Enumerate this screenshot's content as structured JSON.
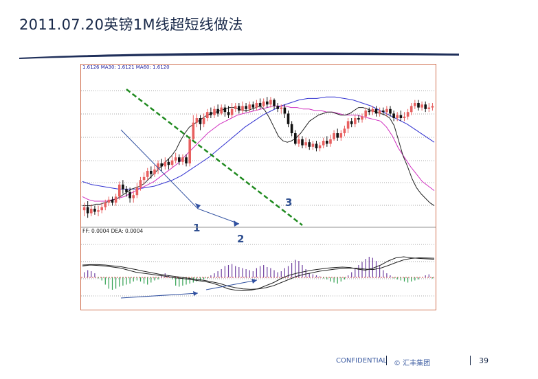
{
  "slide": {
    "title": "2011.07.20英镑1M线超短线做法",
    "confidential": "CONFIDENTIAL",
    "copyright": "© 汇丰集团",
    "page_number": "39"
  },
  "chart_data": {
    "type": "candlestick",
    "price_panel": {
      "header": "1.6126 MA30: 1.6121 MA60: 1.6120",
      "candles": [
        [
          0.09,
          0.11,
          0.05,
          0.14
        ],
        [
          0.11,
          0.07,
          0.04,
          0.15
        ],
        [
          0.07,
          0.1,
          0.05,
          0.13
        ],
        [
          0.1,
          0.08,
          0.06,
          0.12
        ],
        [
          0.08,
          0.09,
          0.05,
          0.12
        ],
        [
          0.09,
          0.11,
          0.07,
          0.14
        ],
        [
          0.11,
          0.14,
          0.09,
          0.16
        ],
        [
          0.14,
          0.16,
          0.12,
          0.18
        ],
        [
          0.16,
          0.14,
          0.12,
          0.18
        ],
        [
          0.14,
          0.18,
          0.12,
          0.2
        ],
        [
          0.18,
          0.26,
          0.16,
          0.28
        ],
        [
          0.26,
          0.23,
          0.2,
          0.29
        ],
        [
          0.23,
          0.21,
          0.18,
          0.25
        ],
        [
          0.21,
          0.17,
          0.14,
          0.24
        ],
        [
          0.17,
          0.19,
          0.14,
          0.22
        ],
        [
          0.19,
          0.24,
          0.17,
          0.27
        ],
        [
          0.24,
          0.29,
          0.22,
          0.31
        ],
        [
          0.29,
          0.31,
          0.26,
          0.34
        ],
        [
          0.31,
          0.35,
          0.29,
          0.37
        ],
        [
          0.35,
          0.33,
          0.3,
          0.38
        ],
        [
          0.33,
          0.36,
          0.31,
          0.39
        ],
        [
          0.36,
          0.4,
          0.33,
          0.42
        ],
        [
          0.4,
          0.38,
          0.35,
          0.43
        ],
        [
          0.38,
          0.41,
          0.36,
          0.44
        ],
        [
          0.41,
          0.39,
          0.36,
          0.43
        ],
        [
          0.39,
          0.42,
          0.37,
          0.45
        ],
        [
          0.42,
          0.44,
          0.4,
          0.47
        ],
        [
          0.44,
          0.41,
          0.39,
          0.46
        ],
        [
          0.41,
          0.44,
          0.39,
          0.46
        ],
        [
          0.44,
          0.4,
          0.38,
          0.46
        ],
        [
          0.4,
          0.56,
          0.38,
          0.58
        ],
        [
          0.56,
          0.67,
          0.54,
          0.72
        ],
        [
          0.67,
          0.7,
          0.64,
          0.73
        ],
        [
          0.7,
          0.66,
          0.62,
          0.72
        ],
        [
          0.66,
          0.7,
          0.64,
          0.73
        ],
        [
          0.7,
          0.74,
          0.68,
          0.76
        ],
        [
          0.74,
          0.72,
          0.7,
          0.77
        ],
        [
          0.72,
          0.76,
          0.7,
          0.78
        ],
        [
          0.76,
          0.73,
          0.71,
          0.79
        ],
        [
          0.73,
          0.77,
          0.72,
          0.79
        ],
        [
          0.77,
          0.74,
          0.71,
          0.79
        ],
        [
          0.74,
          0.72,
          0.7,
          0.78
        ],
        [
          0.72,
          0.76,
          0.7,
          0.8
        ],
        [
          0.76,
          0.78,
          0.74,
          0.8
        ],
        [
          0.78,
          0.75,
          0.73,
          0.8
        ],
        [
          0.75,
          0.78,
          0.73,
          0.81
        ],
        [
          0.78,
          0.76,
          0.74,
          0.8
        ],
        [
          0.76,
          0.79,
          0.74,
          0.81
        ],
        [
          0.79,
          0.77,
          0.75,
          0.81
        ],
        [
          0.77,
          0.8,
          0.75,
          0.82
        ],
        [
          0.8,
          0.78,
          0.76,
          0.83
        ],
        [
          0.78,
          0.81,
          0.77,
          0.83
        ],
        [
          0.81,
          0.79,
          0.77,
          0.84
        ],
        [
          0.79,
          0.82,
          0.77,
          0.84
        ],
        [
          0.82,
          0.78,
          0.76,
          0.83
        ],
        [
          0.78,
          0.76,
          0.74,
          0.8
        ],
        [
          0.76,
          0.77,
          0.73,
          0.79
        ],
        [
          0.77,
          0.73,
          0.7,
          0.79
        ],
        [
          0.73,
          0.66,
          0.64,
          0.75
        ],
        [
          0.66,
          0.6,
          0.58,
          0.68
        ],
        [
          0.6,
          0.53,
          0.52,
          0.62
        ],
        [
          0.53,
          0.56,
          0.51,
          0.59
        ],
        [
          0.56,
          0.52,
          0.5,
          0.58
        ],
        [
          0.52,
          0.54,
          0.5,
          0.57
        ],
        [
          0.54,
          0.51,
          0.49,
          0.56
        ],
        [
          0.51,
          0.53,
          0.49,
          0.55
        ],
        [
          0.53,
          0.5,
          0.48,
          0.55
        ],
        [
          0.5,
          0.52,
          0.48,
          0.54
        ],
        [
          0.52,
          0.55,
          0.5,
          0.57
        ],
        [
          0.55,
          0.53,
          0.51,
          0.58
        ],
        [
          0.53,
          0.56,
          0.51,
          0.59
        ],
        [
          0.56,
          0.6,
          0.55,
          0.62
        ],
        [
          0.6,
          0.57,
          0.55,
          0.63
        ],
        [
          0.57,
          0.6,
          0.55,
          0.62
        ],
        [
          0.6,
          0.63,
          0.58,
          0.65
        ],
        [
          0.63,
          0.68,
          0.6,
          0.7
        ],
        [
          0.68,
          0.66,
          0.64,
          0.7
        ],
        [
          0.66,
          0.7,
          0.64,
          0.72
        ],
        [
          0.7,
          0.69,
          0.67,
          0.72
        ],
        [
          0.69,
          0.71,
          0.67,
          0.73
        ],
        [
          0.71,
          0.75,
          0.69,
          0.77
        ],
        [
          0.75,
          0.74,
          0.72,
          0.77
        ],
        [
          0.74,
          0.76,
          0.72,
          0.78
        ],
        [
          0.76,
          0.73,
          0.71,
          0.78
        ],
        [
          0.73,
          0.75,
          0.71,
          0.77
        ],
        [
          0.75,
          0.74,
          0.72,
          0.77
        ],
        [
          0.74,
          0.76,
          0.71,
          0.78
        ],
        [
          0.76,
          0.73,
          0.71,
          0.78
        ],
        [
          0.73,
          0.7,
          0.68,
          0.75
        ],
        [
          0.7,
          0.72,
          0.68,
          0.74
        ],
        [
          0.72,
          0.7,
          0.68,
          0.75
        ],
        [
          0.7,
          0.71,
          0.68,
          0.74
        ],
        [
          0.71,
          0.74,
          0.69,
          0.76
        ],
        [
          0.74,
          0.78,
          0.72,
          0.8
        ],
        [
          0.78,
          0.8,
          0.76,
          0.82
        ],
        [
          0.8,
          0.77,
          0.75,
          0.82
        ],
        [
          0.77,
          0.79,
          0.75,
          0.81
        ],
        [
          0.79,
          0.76,
          0.74,
          0.81
        ],
        [
          0.76,
          0.77,
          0.74,
          0.8
        ],
        [
          0.77,
          0.78,
          0.75,
          0.8
        ]
      ],
      "ma_short": [
        0.12,
        0.12,
        0.12,
        0.13,
        0.13,
        0.14,
        0.15,
        0.16,
        0.17,
        0.19,
        0.21,
        0.23,
        0.24,
        0.25,
        0.27,
        0.3,
        0.33,
        0.36,
        0.39,
        0.42,
        0.45,
        0.49,
        0.55,
        0.6,
        0.64,
        0.66,
        0.68,
        0.7,
        0.72,
        0.73,
        0.74,
        0.75,
        0.76,
        0.77,
        0.77,
        0.76,
        0.75,
        0.75,
        0.76,
        0.77,
        0.78,
        0.75,
        0.7,
        0.64,
        0.58,
        0.55,
        0.54,
        0.55,
        0.57,
        0.6,
        0.64,
        0.68,
        0.7,
        0.72,
        0.73,
        0.74,
        0.74,
        0.73,
        0.72,
        0.72,
        0.73,
        0.75,
        0.77,
        0.77,
        0.76,
        0.75,
        0.74,
        0.73,
        0.72,
        0.7,
        0.65,
        0.55,
        0.45,
        0.38,
        0.3,
        0.24,
        0.2,
        0.17,
        0.14,
        0.12
      ],
      "ma_mid": [
        0.18,
        0.16,
        0.15,
        0.15,
        0.15,
        0.16,
        0.17,
        0.18,
        0.2,
        0.22,
        0.24,
        0.26,
        0.28,
        0.31,
        0.34,
        0.37,
        0.4,
        0.44,
        0.48,
        0.52,
        0.56,
        0.6,
        0.63,
        0.66,
        0.68,
        0.7,
        0.72,
        0.73,
        0.74,
        0.75,
        0.76,
        0.77,
        0.78,
        0.78,
        0.78,
        0.77,
        0.77,
        0.76,
        0.76,
        0.75,
        0.75,
        0.74,
        0.74,
        0.73,
        0.72,
        0.72,
        0.72,
        0.71,
        0.7,
        0.69,
        0.68,
        0.64,
        0.58,
        0.5,
        0.44,
        0.38,
        0.33,
        0.28,
        0.25,
        0.22
      ],
      "ma_long": [
        0.28,
        0.26,
        0.25,
        0.24,
        0.23,
        0.23,
        0.23,
        0.24,
        0.25,
        0.27,
        0.29,
        0.32,
        0.36,
        0.4,
        0.44,
        0.49,
        0.54,
        0.59,
        0.64,
        0.68,
        0.72,
        0.75,
        0.78,
        0.8,
        0.82,
        0.83,
        0.83,
        0.84,
        0.84,
        0.83,
        0.82,
        0.8,
        0.78,
        0.75,
        0.72,
        0.69,
        0.66,
        0.62,
        0.58,
        0.54
      ],
      "annotations": [
        "1",
        "2",
        "3"
      ]
    },
    "macd_panel": {
      "header": "FF: 0.0004 DEA: 0.0004",
      "histogram": [
        0.25,
        0.35,
        0.3,
        0.2,
        -0.05,
        -0.15,
        -0.35,
        -0.55,
        -0.6,
        -0.55,
        -0.45,
        -0.4,
        -0.35,
        -0.3,
        -0.2,
        -0.15,
        -0.2,
        -0.3,
        -0.35,
        -0.25,
        -0.15,
        -0.1,
        0.1,
        0.2,
        0.1,
        -0.1,
        -0.4,
        -0.45,
        -0.4,
        -0.35,
        -0.3,
        -0.25,
        -0.2,
        -0.15,
        -0.1,
        -0.05,
        0.1,
        0.2,
        0.3,
        0.4,
        0.55,
        0.6,
        0.65,
        0.55,
        0.5,
        0.45,
        0.4,
        0.35,
        0.3,
        0.45,
        0.55,
        0.6,
        0.5,
        0.45,
        0.35,
        0.25,
        0.3,
        0.45,
        0.55,
        0.7,
        0.85,
        0.8,
        0.6,
        0.4,
        0.2,
        0.15,
        0.1,
        0.05,
        -0.05,
        -0.1,
        -0.2,
        -0.25,
        -0.3,
        -0.2,
        -0.1,
        0.1,
        0.25,
        0.45,
        0.6,
        0.75,
        0.9,
        1.0,
        0.95,
        0.8,
        0.55,
        0.35,
        0.2,
        0.1,
        -0.05,
        -0.1,
        -0.15,
        -0.2,
        -0.25,
        -0.2,
        -0.15,
        -0.1,
        0.0,
        0.1,
        0.15,
        -0.05
      ],
      "dif": [
        0.55,
        0.6,
        0.58,
        0.55,
        0.5,
        0.45,
        0.35,
        0.25,
        0.2,
        0.15,
        0.1,
        0.05,
        -0.02,
        -0.05,
        -0.1,
        -0.15,
        -0.2,
        -0.28,
        -0.4,
        -0.55,
        -0.62,
        -0.65,
        -0.62,
        -0.55,
        -0.4,
        -0.25,
        -0.05,
        0.1,
        0.2,
        0.28,
        0.35,
        0.4,
        0.45,
        0.48,
        0.5,
        0.48,
        0.4,
        0.35,
        0.45,
        0.6,
        0.8,
        0.95,
        1.0,
        0.95,
        0.92,
        0.9,
        0.88
      ],
      "dea": [
        0.6,
        0.62,
        0.62,
        0.6,
        0.56,
        0.52,
        0.45,
        0.38,
        0.3,
        0.23,
        0.16,
        0.1,
        0.05,
        0.0,
        -0.05,
        -0.1,
        -0.15,
        -0.22,
        -0.3,
        -0.42,
        -0.5,
        -0.56,
        -0.58,
        -0.56,
        -0.5,
        -0.4,
        -0.25,
        -0.1,
        0.05,
        0.15,
        0.22,
        0.3,
        0.35,
        0.4,
        0.43,
        0.45,
        0.44,
        0.4,
        0.38,
        0.45,
        0.58,
        0.72,
        0.85,
        0.92,
        0.95,
        0.94,
        0.93
      ]
    }
  },
  "colors": {
    "up_candle": "#e86060",
    "down_candle": "#111111",
    "ma_short": "#222222",
    "ma_mid": "#d030c0",
    "ma_long": "#3030d0",
    "trendline": "#1f8a1f",
    "arrow": "#3050a0",
    "annotation": "#2f4f90",
    "hist_up": "#7040a0",
    "hist_down": "#30a050"
  }
}
